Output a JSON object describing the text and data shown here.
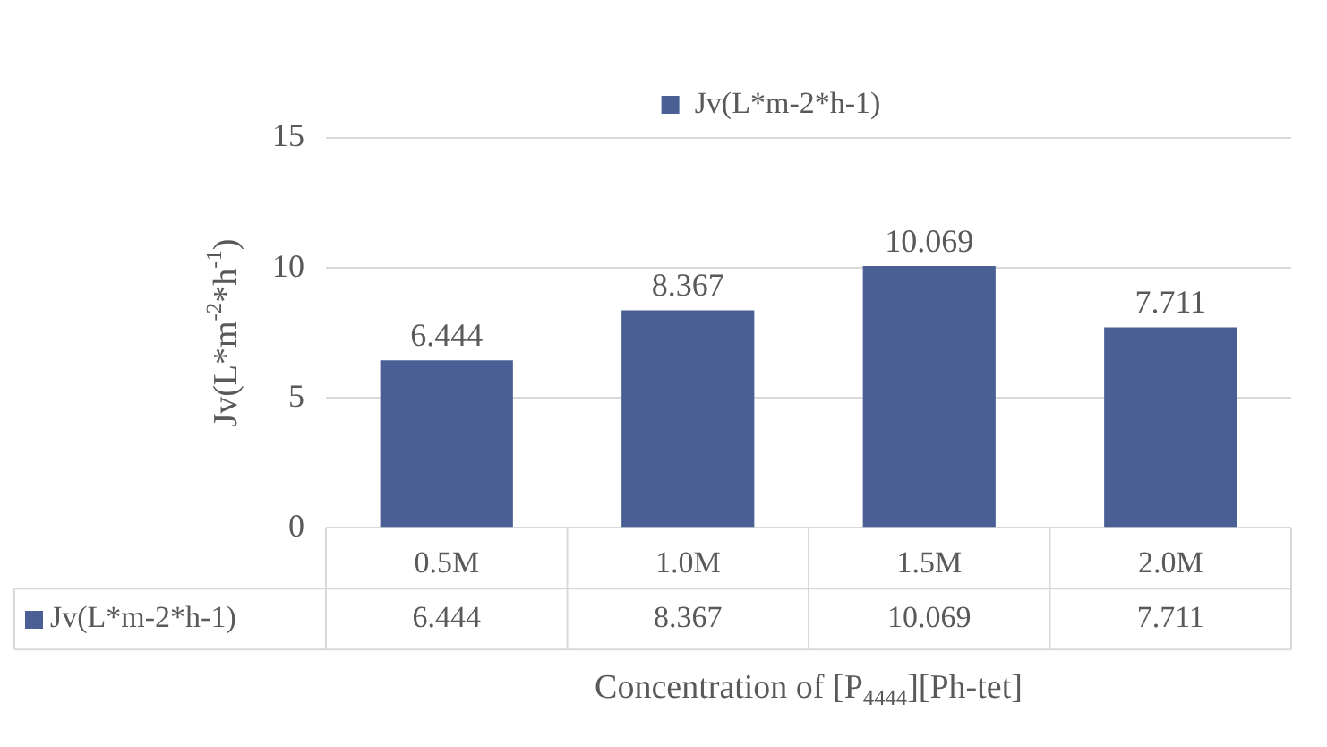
{
  "chart_data": {
    "type": "bar",
    "xlabel": "Concentration of [P$_{4444}$][Ph-tet]",
    "ylabel": "Jv(L*m$^{-2}$*h$^{-1}$)",
    "categories": [
      "0.5M",
      "1.0M",
      "1.5M",
      "2.0M"
    ],
    "series": [
      {
        "name": "Jv(L*m-2*h-1)",
        "color": "#4a5f94",
        "values": [
          6.444,
          8.367,
          10.069,
          7.711
        ],
        "value_labels": [
          "6.444",
          "8.367",
          "10.069",
          "7.711"
        ]
      }
    ],
    "ylim": [
      0,
      15
    ],
    "yticks": [
      0,
      5,
      10,
      15
    ],
    "grid": "y",
    "legend": "top",
    "annotations": [
      "6.444",
      "8.367",
      "10.069",
      "7.711"
    ]
  }
}
